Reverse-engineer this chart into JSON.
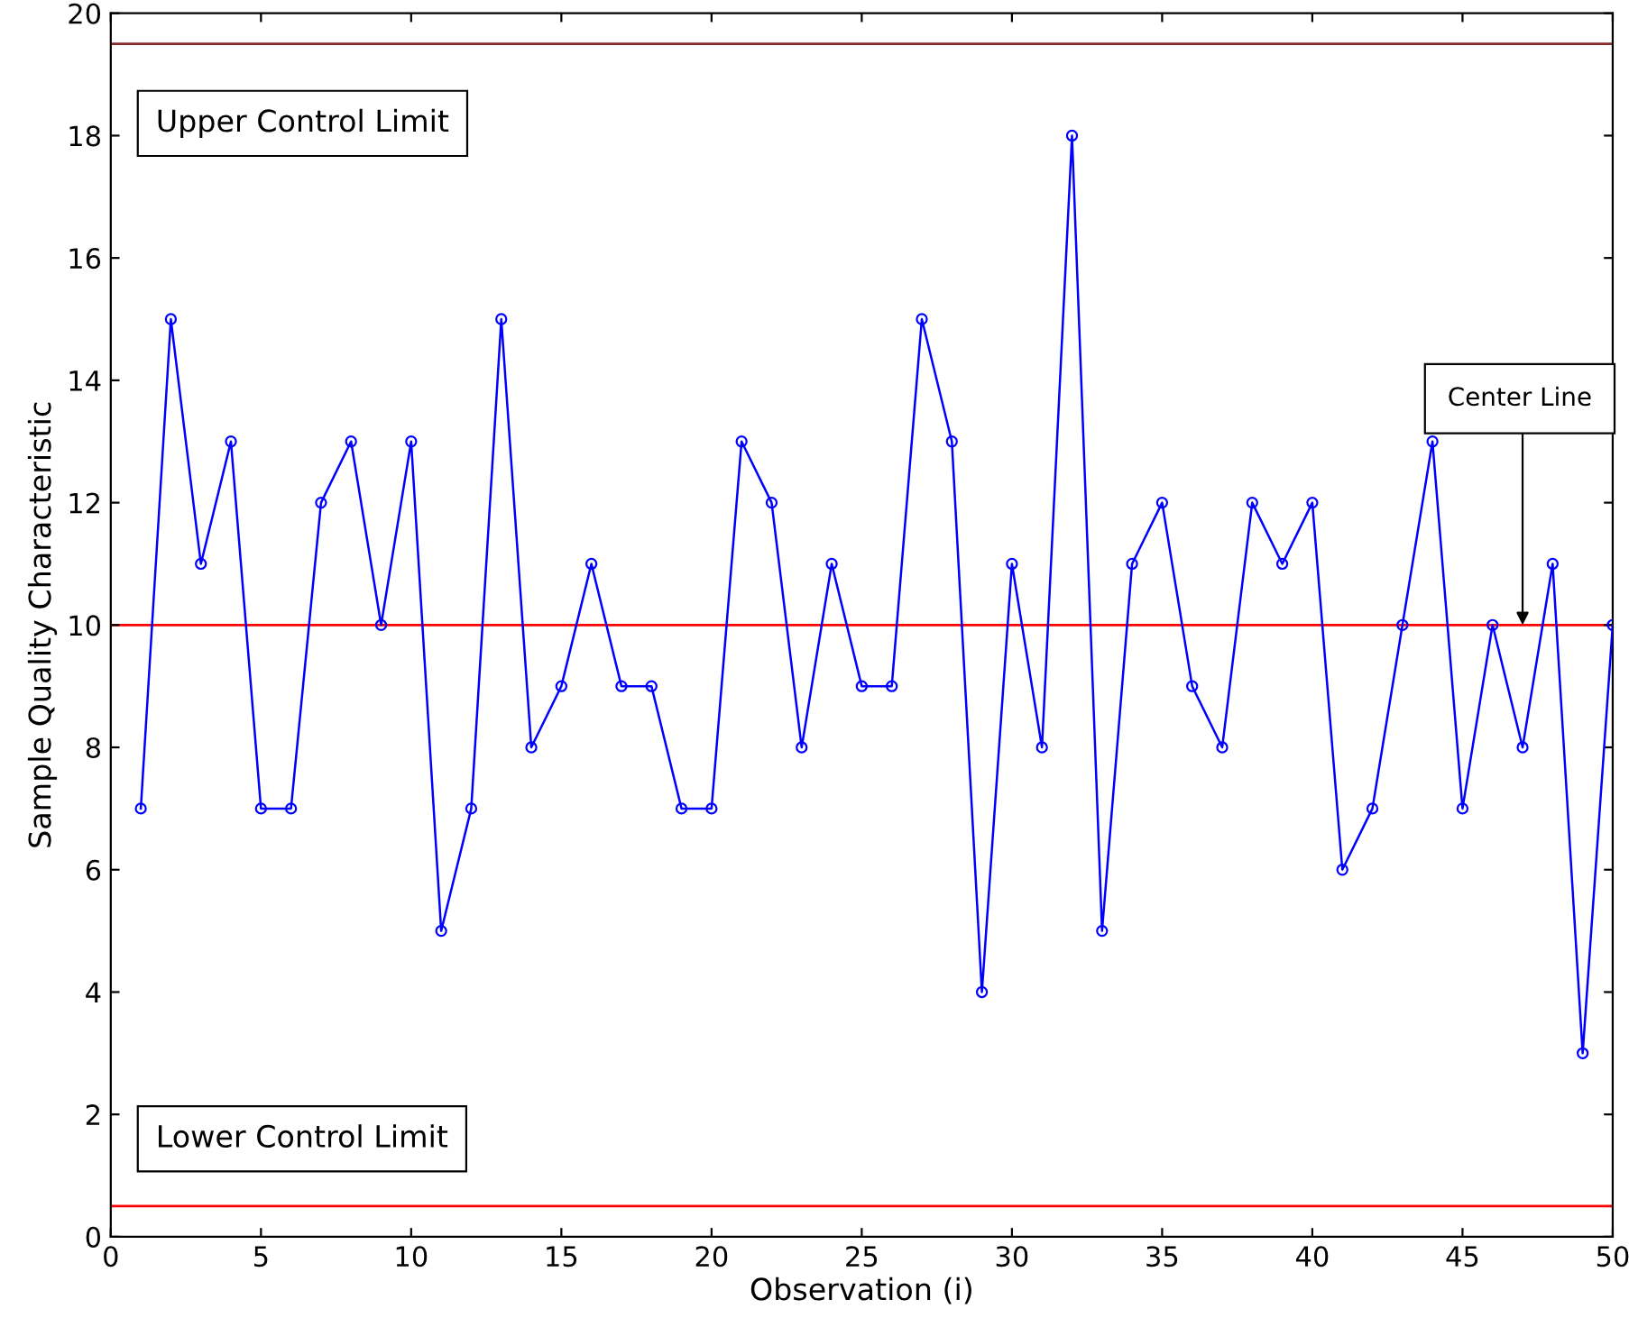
{
  "chart_data": {
    "type": "line",
    "xlabel": "Observation (i)",
    "ylabel": "Sample Quality Characteristic",
    "x": [
      1,
      2,
      3,
      4,
      5,
      6,
      7,
      8,
      9,
      10,
      11,
      12,
      13,
      14,
      15,
      16,
      17,
      18,
      19,
      20,
      21,
      22,
      23,
      24,
      25,
      26,
      27,
      28,
      29,
      30,
      31,
      32,
      33,
      34,
      35,
      36,
      37,
      38,
      39,
      40,
      41,
      42,
      43,
      44,
      45,
      46,
      47,
      48,
      49,
      50
    ],
    "series": [
      {
        "color": "#0000ff",
        "values": [
          7,
          15,
          11,
          13,
          7,
          7,
          12,
          13,
          10,
          13,
          5,
          7,
          15,
          8,
          9,
          11,
          9,
          9,
          7,
          7,
          13,
          12,
          8,
          11,
          9,
          9,
          15,
          13,
          4,
          11,
          8,
          18,
          5,
          11,
          12,
          9,
          8,
          12,
          11,
          12,
          6,
          7,
          10,
          13,
          7,
          10,
          8,
          11,
          3,
          10
        ]
      }
    ],
    "marker": "circle",
    "line_style": "solid",
    "grid": false,
    "legend": false,
    "xlim": [
      0,
      50
    ],
    "xticks": [
      0,
      5,
      10,
      15,
      20,
      25,
      30,
      35,
      40,
      45,
      50
    ],
    "ylim": [
      0,
      20
    ],
    "yticks": [
      0,
      2,
      4,
      6,
      8,
      10,
      12,
      14,
      16,
      18,
      20
    ],
    "ref_lines": [
      {
        "axis": "y",
        "value": 19.5,
        "label": "Upper Control Limit",
        "color": "#8b2a2a"
      },
      {
        "axis": "y",
        "value": 10,
        "color": "#ff0000"
      },
      {
        "axis": "y",
        "value": 0.5,
        "label": "Lower Control Limit",
        "color": "#ff0000"
      }
    ],
    "annotations": [
      {
        "text": "Center Line",
        "x": 47,
        "y": 10
      }
    ]
  }
}
